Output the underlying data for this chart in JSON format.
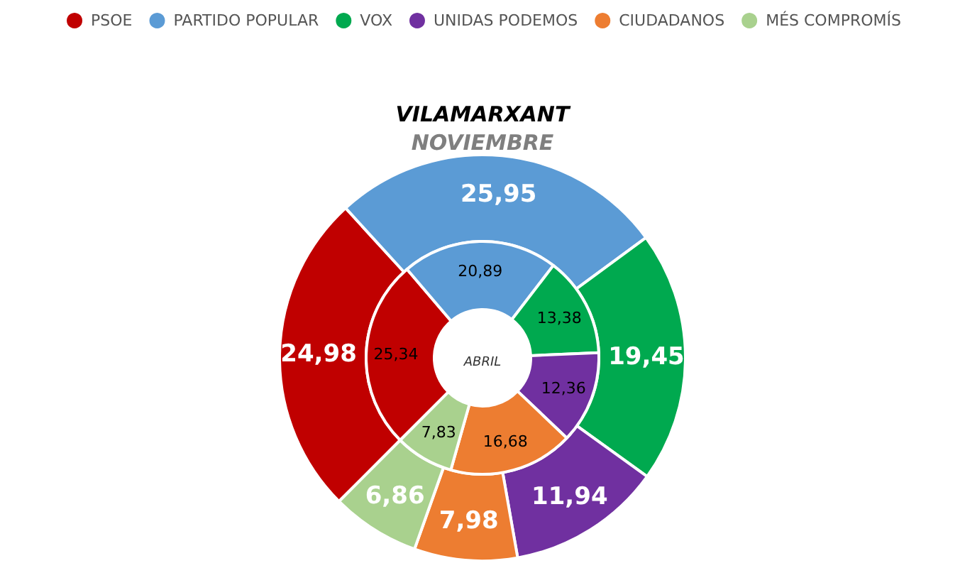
{
  "chart_data": {
    "type": "donut",
    "title": "VILAMARXANT",
    "categories": [
      "PSOE",
      "PARTIDO POPULAR",
      "VOX",
      "UNIDAS PODEMOS",
      "CIUDADANOS",
      "MÉS COMPROMÍS"
    ],
    "colors": [
      "#c00000",
      "#5b9bd5",
      "#00a94f",
      "#7030a0",
      "#ed7d31",
      "#a9d18e"
    ],
    "series": [
      {
        "name": "NOVIEMBRE",
        "values": [
          24.98,
          25.95,
          19.45,
          11.94,
          7.98,
          6.86
        ],
        "value_labels": [
          "24,98",
          "25,95",
          "19,45",
          "11,94",
          "7,98",
          "6,86"
        ]
      },
      {
        "name": "ABRIL",
        "values": [
          25.34,
          20.89,
          13.38,
          12.36,
          16.68,
          7.83
        ],
        "value_labels": [
          "25,34",
          "20,89",
          "13,38",
          "12,36",
          "16,68",
          "7,83"
        ]
      }
    ],
    "legend": "top"
  }
}
